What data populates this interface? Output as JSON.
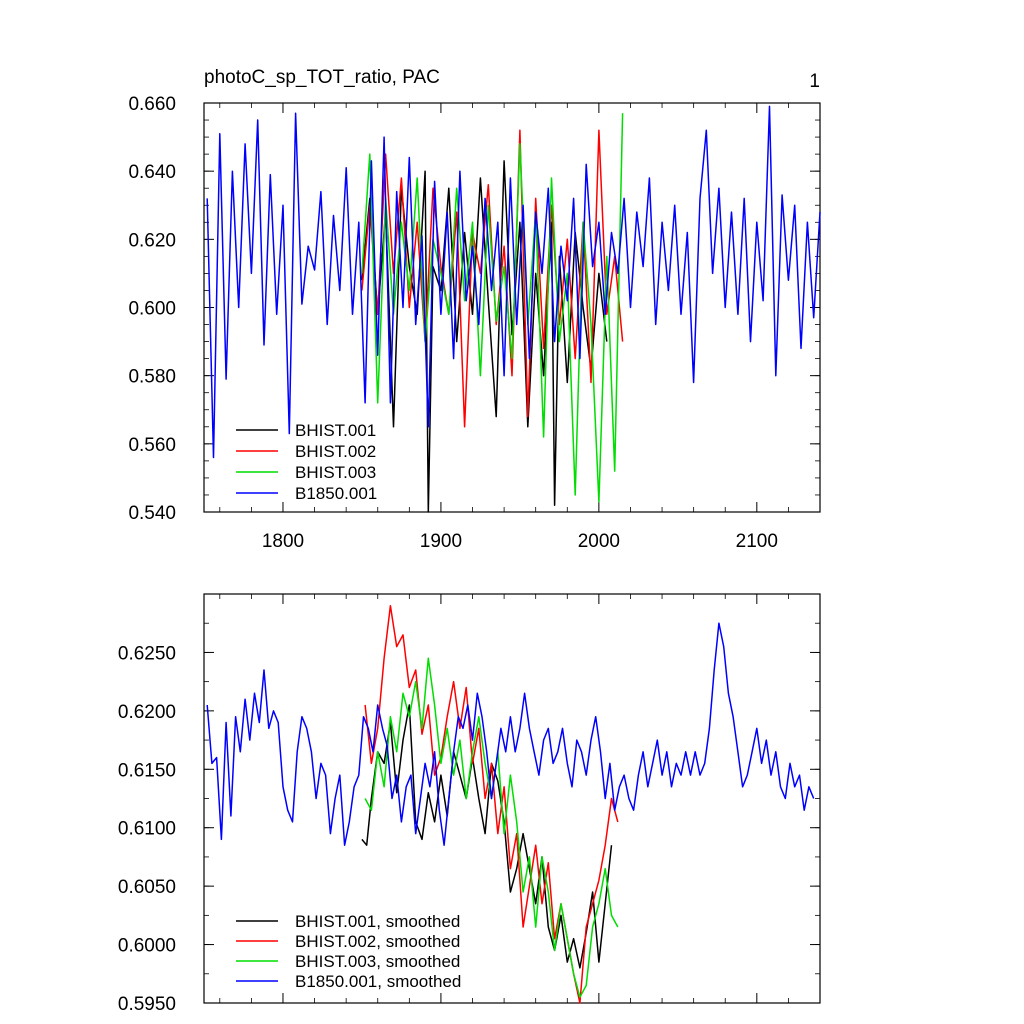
{
  "colors": {
    "BHIST.001": "#000000",
    "BHIST.002": "#ff0000",
    "BHIST.003": "#00dd00",
    "B1850.001": "#0000ff"
  },
  "chart_data": [
    {
      "type": "line",
      "title": "photoC_sp_TOT_ratio, PAC",
      "title_right": "1",
      "xlim": [
        1750,
        2140
      ],
      "ylim": [
        0.54,
        0.66
      ],
      "xticks": [
        1800,
        1900,
        2000,
        2100
      ],
      "xtick_labels": [
        "1800",
        "1900",
        "2000",
        "2100"
      ],
      "yticks": [
        0.54,
        0.56,
        0.58,
        0.6,
        0.62,
        0.64,
        0.66
      ],
      "ytick_labels": [
        "0.540",
        "0.560",
        "0.580",
        "0.600",
        "0.620",
        "0.640",
        "0.660"
      ],
      "grid": false,
      "legend": "bottom-left",
      "series": [
        {
          "name": "BHIST.001",
          "x": [
            1850,
            1855,
            1860,
            1865,
            1870,
            1875,
            1880,
            1885,
            1890,
            1892,
            1895,
            1900,
            1905,
            1910,
            1915,
            1920,
            1925,
            1930,
            1935,
            1940,
            1945,
            1950,
            1955,
            1960,
            1965,
            1970,
            1972,
            1975,
            1980,
            1985,
            1990,
            1995,
            2000,
            2005
          ],
          "values": [
            0.608,
            0.632,
            0.598,
            0.628,
            0.565,
            0.635,
            0.612,
            0.598,
            0.64,
            0.54,
            0.612,
            0.605,
            0.635,
            0.59,
            0.622,
            0.598,
            0.638,
            0.602,
            0.568,
            0.643,
            0.592,
            0.625,
            0.565,
            0.61,
            0.58,
            0.625,
            0.542,
            0.615,
            0.578,
            0.622,
            0.6,
            0.582,
            0.61,
            0.59
          ]
        },
        {
          "name": "BHIST.002",
          "x": [
            1850,
            1855,
            1860,
            1865,
            1870,
            1875,
            1880,
            1885,
            1890,
            1895,
            1900,
            1905,
            1910,
            1915,
            1920,
            1925,
            1930,
            1935,
            1940,
            1945,
            1950,
            1955,
            1960,
            1965,
            1970,
            1975,
            1980,
            1985,
            1990,
            1995,
            2000,
            2005,
            2010,
            2015
          ],
          "values": [
            0.605,
            0.63,
            0.598,
            0.645,
            0.61,
            0.638,
            0.6,
            0.625,
            0.59,
            0.635,
            0.612,
            0.598,
            0.628,
            0.565,
            0.622,
            0.61,
            0.636,
            0.595,
            0.618,
            0.58,
            0.652,
            0.568,
            0.632,
            0.588,
            0.63,
            0.595,
            0.62,
            0.585,
            0.625,
            0.578,
            0.652,
            0.598,
            0.615,
            0.59
          ]
        },
        {
          "name": "BHIST.003",
          "x": [
            1850,
            1855,
            1860,
            1865,
            1870,
            1875,
            1880,
            1885,
            1890,
            1895,
            1900,
            1905,
            1910,
            1915,
            1920,
            1925,
            1930,
            1935,
            1940,
            1945,
            1950,
            1955,
            1960,
            1965,
            1970,
            1975,
            1980,
            1985,
            1990,
            1995,
            2000,
            2005,
            2010,
            2015
          ],
          "values": [
            0.61,
            0.645,
            0.572,
            0.632,
            0.598,
            0.625,
            0.605,
            0.638,
            0.59,
            0.62,
            0.61,
            0.598,
            0.635,
            0.602,
            0.625,
            0.58,
            0.63,
            0.596,
            0.612,
            0.585,
            0.648,
            0.595,
            0.628,
            0.562,
            0.638,
            0.59,
            0.61,
            0.545,
            0.625,
            0.595,
            0.543,
            0.615,
            0.552,
            0.657
          ]
        },
        {
          "name": "B1850.001",
          "x": [
            1752,
            1756,
            1760,
            1764,
            1768,
            1772,
            1776,
            1780,
            1784,
            1788,
            1792,
            1796,
            1800,
            1804,
            1808,
            1812,
            1816,
            1820,
            1824,
            1828,
            1832,
            1836,
            1840,
            1844,
            1848,
            1852,
            1856,
            1860,
            1864,
            1868,
            1872,
            1876,
            1880,
            1884,
            1888,
            1892,
            1896,
            1900,
            1904,
            1908,
            1912,
            1916,
            1920,
            1924,
            1928,
            1932,
            1936,
            1940,
            1944,
            1948,
            1952,
            1956,
            1960,
            1964,
            1968,
            1972,
            1976,
            1980,
            1984,
            1988,
            1992,
            1996,
            2000,
            2004,
            2008,
            2012,
            2016,
            2020,
            2024,
            2028,
            2032,
            2036,
            2040,
            2044,
            2048,
            2052,
            2056,
            2060,
            2064,
            2068,
            2072,
            2076,
            2080,
            2084,
            2088,
            2092,
            2096,
            2100,
            2104,
            2108,
            2112,
            2116,
            2120,
            2124,
            2128,
            2132,
            2136,
            2140
          ],
          "values": [
            0.632,
            0.556,
            0.651,
            0.579,
            0.64,
            0.6,
            0.648,
            0.61,
            0.655,
            0.589,
            0.639,
            0.598,
            0.63,
            0.563,
            0.657,
            0.601,
            0.618,
            0.611,
            0.634,
            0.595,
            0.627,
            0.605,
            0.641,
            0.598,
            0.625,
            0.572,
            0.643,
            0.586,
            0.65,
            0.572,
            0.634,
            0.6,
            0.644,
            0.595,
            0.621,
            0.565,
            0.637,
            0.598,
            0.628,
            0.585,
            0.64,
            0.602,
            0.618,
            0.595,
            0.632,
            0.605,
            0.625,
            0.58,
            0.638,
            0.595,
            0.63,
            0.585,
            0.628,
            0.61,
            0.635,
            0.59,
            0.618,
            0.602,
            0.632,
            0.585,
            0.642,
            0.612,
            0.625,
            0.598,
            0.622,
            0.61,
            0.632,
            0.6,
            0.628,
            0.612,
            0.638,
            0.595,
            0.625,
            0.605,
            0.63,
            0.598,
            0.622,
            0.578,
            0.632,
            0.652,
            0.61,
            0.635,
            0.6,
            0.628,
            0.598,
            0.632,
            0.59,
            0.625,
            0.602,
            0.659,
            0.58,
            0.633,
            0.608,
            0.63,
            0.588,
            0.625,
            0.597,
            0.628
          ]
        }
      ]
    },
    {
      "type": "line",
      "xlim": [
        1750,
        2140
      ],
      "ylim": [
        0.595,
        0.63
      ],
      "xticks": [
        1800,
        1900,
        2000,
        2100
      ],
      "yticks": [
        0.595,
        0.6,
        0.605,
        0.61,
        0.615,
        0.62,
        0.625
      ],
      "ytick_labels": [
        "0.5950",
        "0.6000",
        "0.6050",
        "0.6100",
        "0.6150",
        "0.6200",
        "0.6250"
      ],
      "grid": false,
      "legend": "bottom-left",
      "series": [
        {
          "name": "BHIST.001, smoothed",
          "x": [
            1850,
            1853,
            1856,
            1860,
            1864,
            1868,
            1872,
            1876,
            1880,
            1884,
            1888,
            1892,
            1896,
            1900,
            1904,
            1908,
            1912,
            1916,
            1920,
            1924,
            1928,
            1932,
            1936,
            1940,
            1944,
            1948,
            1952,
            1956,
            1960,
            1964,
            1968,
            1972,
            1976,
            1980,
            1984,
            1988,
            1992,
            1996,
            2000,
            2004,
            2008
          ],
          "values": [
            0.609,
            0.6085,
            0.6125,
            0.6165,
            0.6155,
            0.619,
            0.613,
            0.6175,
            0.6205,
            0.6105,
            0.609,
            0.613,
            0.6105,
            0.6145,
            0.611,
            0.6165,
            0.6145,
            0.6125,
            0.616,
            0.6125,
            0.6095,
            0.6155,
            0.614,
            0.6105,
            0.6045,
            0.6065,
            0.6095,
            0.6065,
            0.6035,
            0.6075,
            0.6015,
            0.5995,
            0.6025,
            0.5985,
            0.6005,
            0.598,
            0.601,
            0.6045,
            0.5985,
            0.6035,
            0.6085
          ]
        },
        {
          "name": "BHIST.002, smoothed",
          "x": [
            1852,
            1856,
            1860,
            1864,
            1868,
            1872,
            1876,
            1880,
            1884,
            1888,
            1892,
            1896,
            1900,
            1904,
            1908,
            1912,
            1916,
            1920,
            1924,
            1928,
            1932,
            1936,
            1940,
            1944,
            1948,
            1952,
            1956,
            1960,
            1964,
            1968,
            1972,
            1976,
            1980,
            1984,
            1988,
            1992,
            1996,
            2000,
            2004,
            2008,
            2012
          ],
          "values": [
            0.6205,
            0.6155,
            0.6185,
            0.6245,
            0.629,
            0.6255,
            0.6265,
            0.622,
            0.6235,
            0.618,
            0.6205,
            0.6145,
            0.616,
            0.6195,
            0.6225,
            0.6185,
            0.622,
            0.6155,
            0.6185,
            0.6125,
            0.6155,
            0.6095,
            0.6135,
            0.6065,
            0.6095,
            0.6015,
            0.605,
            0.6085,
            0.6035,
            0.607,
            0.6005,
            0.6035,
            0.6005,
            0.5975,
            0.595,
            0.6015,
            0.6035,
            0.6055,
            0.6085,
            0.6125,
            0.6105
          ]
        },
        {
          "name": "BHIST.003, smoothed",
          "x": [
            1852,
            1856,
            1860,
            1864,
            1868,
            1872,
            1876,
            1880,
            1884,
            1888,
            1892,
            1896,
            1900,
            1904,
            1908,
            1912,
            1916,
            1920,
            1924,
            1928,
            1932,
            1936,
            1940,
            1944,
            1948,
            1952,
            1956,
            1960,
            1964,
            1968,
            1972,
            1976,
            1980,
            1984,
            1988,
            1992,
            1996,
            2000,
            2004,
            2008,
            2012
          ],
          "values": [
            0.6125,
            0.6115,
            0.6165,
            0.6135,
            0.6195,
            0.6165,
            0.6215,
            0.6195,
            0.6225,
            0.6185,
            0.6245,
            0.6205,
            0.6155,
            0.6185,
            0.6145,
            0.6175,
            0.6125,
            0.6165,
            0.6195,
            0.6155,
            0.6125,
            0.6165,
            0.6095,
            0.6145,
            0.6105,
            0.6045,
            0.6075,
            0.6015,
            0.6075,
            0.6045,
            0.5995,
            0.6035,
            0.6005,
            0.5975,
            0.5955,
            0.5965,
            0.6015,
            0.6035,
            0.6065,
            0.6025,
            0.6015
          ]
        },
        {
          "name": "B1850.001, smoothed",
          "x": [
            1752,
            1755,
            1758,
            1761,
            1764,
            1767,
            1770,
            1773,
            1776,
            1779,
            1782,
            1785,
            1788,
            1791,
            1794,
            1797,
            1800,
            1803,
            1806,
            1809,
            1812,
            1815,
            1818,
            1821,
            1824,
            1827,
            1830,
            1833,
            1836,
            1839,
            1842,
            1845,
            1848,
            1851,
            1854,
            1857,
            1860,
            1863,
            1866,
            1869,
            1872,
            1875,
            1878,
            1881,
            1884,
            1887,
            1890,
            1893,
            1896,
            1899,
            1902,
            1905,
            1908,
            1911,
            1914,
            1917,
            1920,
            1923,
            1926,
            1929,
            1932,
            1935,
            1938,
            1941,
            1944,
            1947,
            1950,
            1953,
            1956,
            1959,
            1962,
            1965,
            1968,
            1971,
            1974,
            1977,
            1980,
            1983,
            1986,
            1989,
            1992,
            1995,
            1998,
            2001,
            2004,
            2007,
            2010,
            2013,
            2016,
            2019,
            2022,
            2025,
            2028,
            2031,
            2034,
            2037,
            2040,
            2043,
            2046,
            2049,
            2052,
            2055,
            2058,
            2061,
            2064,
            2067,
            2070,
            2073,
            2076,
            2079,
            2082,
            2085,
            2088,
            2091,
            2094,
            2097,
            2100,
            2103,
            2106,
            2109,
            2112,
            2115,
            2118,
            2121,
            2124,
            2127,
            2130,
            2133,
            2136
          ],
          "values": [
            0.6205,
            0.6155,
            0.616,
            0.609,
            0.619,
            0.611,
            0.6195,
            0.6165,
            0.621,
            0.6175,
            0.6215,
            0.619,
            0.6235,
            0.6185,
            0.62,
            0.619,
            0.6135,
            0.6115,
            0.6105,
            0.6165,
            0.6195,
            0.6185,
            0.6165,
            0.6125,
            0.6155,
            0.6145,
            0.6095,
            0.6125,
            0.6145,
            0.6085,
            0.6105,
            0.6135,
            0.6145,
            0.6195,
            0.6185,
            0.6165,
            0.6205,
            0.6185,
            0.617,
            0.6125,
            0.6145,
            0.6105,
            0.6135,
            0.6145,
            0.6095,
            0.6125,
            0.6155,
            0.6135,
            0.6165,
            0.6115,
            0.6085,
            0.6125,
            0.6165,
            0.6195,
            0.6185,
            0.6205,
            0.6175,
            0.6215,
            0.6195,
            0.6165,
            0.6125,
            0.6155,
            0.6185,
            0.6165,
            0.6195,
            0.6165,
            0.6185,
            0.6215,
            0.6185,
            0.6165,
            0.6145,
            0.6175,
            0.6185,
            0.6155,
            0.6165,
            0.6185,
            0.6155,
            0.6135,
            0.6175,
            0.6165,
            0.6145,
            0.6175,
            0.6195,
            0.6165,
            0.6125,
            0.6155,
            0.6115,
            0.6135,
            0.6145,
            0.6125,
            0.6115,
            0.6145,
            0.6165,
            0.6135,
            0.6155,
            0.6175,
            0.6145,
            0.6165,
            0.6135,
            0.6155,
            0.6145,
            0.6165,
            0.6145,
            0.6165,
            0.6145,
            0.6155,
            0.6185,
            0.6235,
            0.6275,
            0.6255,
            0.6215,
            0.6195,
            0.6165,
            0.6135,
            0.6145,
            0.6165,
            0.6185,
            0.6155,
            0.6175,
            0.6145,
            0.6165,
            0.6135,
            0.6125,
            0.6155,
            0.6135,
            0.6145,
            0.6115,
            0.6135,
            0.6125
          ]
        }
      ]
    }
  ]
}
